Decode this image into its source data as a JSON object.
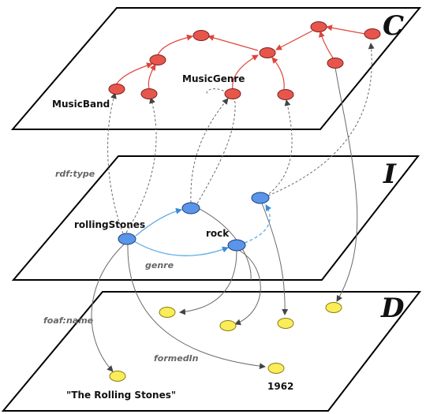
{
  "planes": {
    "c": {
      "letter": "C"
    },
    "i": {
      "letter": "I"
    },
    "d": {
      "letter": "D"
    }
  },
  "labels": {
    "music_band": "MusicBand",
    "music_genre": "MusicGenre",
    "rolling_stones": "rollingStones",
    "rock": "rock",
    "rdf_type": "rdf:type",
    "genre": "genre",
    "foaf_name": "foaf:name",
    "formed_in": "formedIn",
    "name_value": "\"The Rolling Stones\"",
    "year_value": "1962"
  },
  "colors": {
    "class_node": "#e8564b",
    "instance_node": "#5b95ea",
    "data_node": "#fbec59",
    "subclass_edge": "#e0453a",
    "instance_edge": "#5aaae8",
    "link_edge": "#6a6a6a"
  }
}
